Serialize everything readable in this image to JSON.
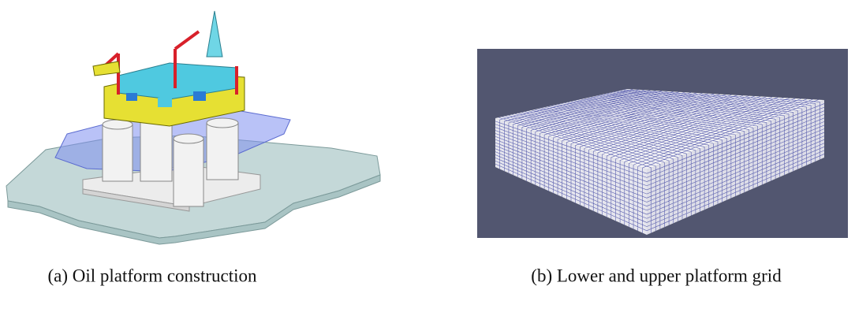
{
  "subfigures": [
    {
      "caption": "(a) Oil platform construction"
    },
    {
      "caption": "(b) Lower and upper platform grid"
    }
  ]
}
